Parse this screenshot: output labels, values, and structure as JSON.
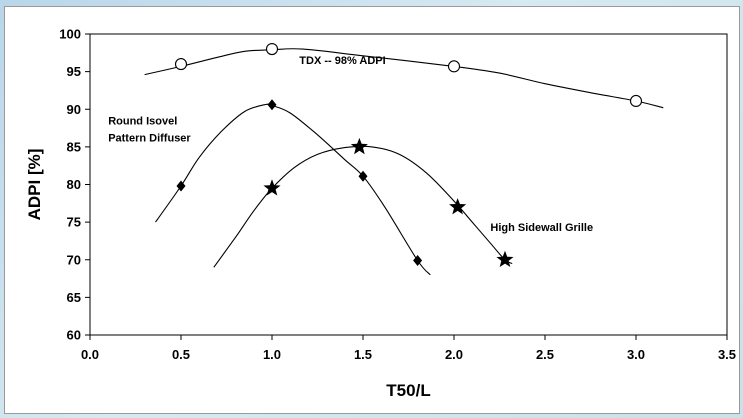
{
  "chart_data": {
    "type": "line",
    "title": "",
    "xlabel": "T50/L",
    "ylabel": "ADPI [%]",
    "xlim": [
      0.0,
      3.5
    ],
    "ylim": [
      60,
      100
    ],
    "x_ticks": [
      "0.0",
      "0.5",
      "1.0",
      "1.5",
      "2.0",
      "2.5",
      "3.0",
      "3.5"
    ],
    "y_ticks": [
      "60",
      "65",
      "70",
      "75",
      "80",
      "85",
      "90",
      "95",
      "100"
    ],
    "grid": false,
    "legend": "none",
    "series": [
      {
        "marker": "open-circle",
        "points": [
          [
            0.5,
            96
          ],
          [
            1.0,
            98
          ],
          [
            2.0,
            95.7
          ],
          [
            3.0,
            91.1
          ]
        ],
        "curve": [
          [
            0.3,
            94.6
          ],
          [
            0.5,
            95.7
          ],
          [
            0.7,
            96.9
          ],
          [
            0.85,
            97.7
          ],
          [
            1.0,
            97.9
          ],
          [
            1.17,
            98.0
          ],
          [
            1.5,
            97.1
          ],
          [
            2.0,
            95.7
          ],
          [
            2.25,
            94.8
          ],
          [
            2.5,
            93.4
          ],
          [
            2.75,
            92.2
          ],
          [
            3.0,
            91.1
          ],
          [
            3.15,
            90.2
          ]
        ]
      },
      {
        "marker": "diamond",
        "points": [
          [
            0.5,
            79.8
          ],
          [
            1.0,
            90.6
          ],
          [
            1.5,
            81.1
          ],
          [
            1.8,
            69.9
          ]
        ],
        "curve": [
          [
            0.36,
            75.0
          ],
          [
            0.5,
            79.8
          ],
          [
            0.6,
            83.6
          ],
          [
            0.72,
            87.0
          ],
          [
            0.85,
            89.7
          ],
          [
            0.96,
            90.6
          ],
          [
            1.0,
            90.5
          ],
          [
            1.1,
            89.5
          ],
          [
            1.25,
            86.6
          ],
          [
            1.4,
            83.3
          ],
          [
            1.5,
            81.1
          ],
          [
            1.62,
            77.0
          ],
          [
            1.8,
            69.9
          ],
          [
            1.87,
            68.0
          ]
        ]
      },
      {
        "marker": "star",
        "points": [
          [
            1.0,
            79.5
          ],
          [
            1.48,
            85.0
          ],
          [
            2.02,
            77.0
          ],
          [
            2.28,
            70.0
          ]
        ],
        "curve": [
          [
            0.68,
            69.0
          ],
          [
            0.8,
            73.0
          ],
          [
            0.9,
            76.5
          ],
          [
            1.0,
            79.5
          ],
          [
            1.12,
            82.2
          ],
          [
            1.25,
            84.0
          ],
          [
            1.4,
            84.9
          ],
          [
            1.55,
            85.0
          ],
          [
            1.7,
            84.0
          ],
          [
            1.85,
            81.5
          ],
          [
            2.0,
            77.8
          ],
          [
            2.1,
            75.0
          ],
          [
            2.2,
            72.2
          ],
          [
            2.28,
            70.0
          ],
          [
            2.32,
            69.5
          ]
        ]
      }
    ],
    "annotations": [
      {
        "text": "TDX -- 98% ADPI",
        "x": 1.15,
        "y": 96.0
      },
      {
        "text": "Round Isovel",
        "x": 0.1,
        "y": 88.0
      },
      {
        "text": "Pattern Diffuser",
        "x": 0.1,
        "y": 85.7
      },
      {
        "text": "High Sidewall Grille",
        "x": 2.2,
        "y": 73.8
      }
    ]
  }
}
